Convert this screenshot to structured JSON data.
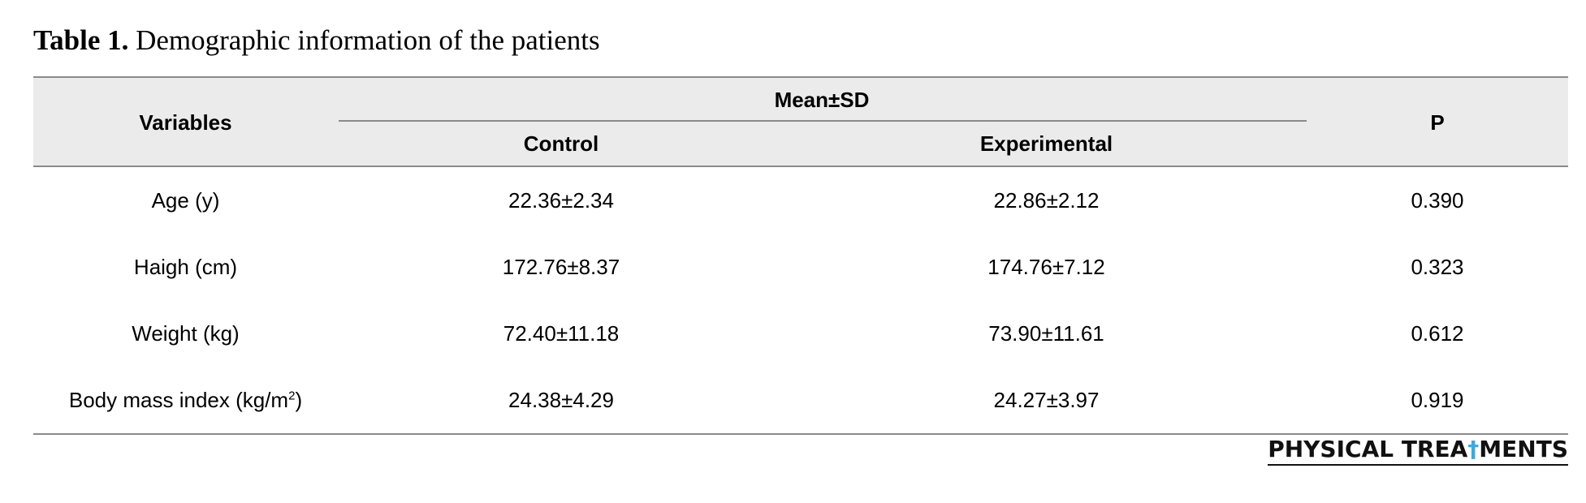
{
  "caption": {
    "label": "Table 1.",
    "text": "Demographic information of the patients"
  },
  "headers": {
    "variables": "Variables",
    "mean_sd": "Mean±SD",
    "control": "Control",
    "experimental": "Experimental",
    "p": "P"
  },
  "rows": [
    {
      "variable": "Age (y)",
      "control": "22.36±2.34",
      "experimental": "22.86±2.12",
      "p": "0.390"
    },
    {
      "variable": "Haigh (cm)",
      "control": "172.76±8.37",
      "experimental": "174.76±7.12",
      "p": "0.323"
    },
    {
      "variable": "Weight (kg)",
      "control": "72.40±11.18",
      "experimental": "73.90±11.61",
      "p": "0.612"
    },
    {
      "variable": "Body mass index (kg/m",
      "variable_sup": "2",
      "variable_end": ")",
      "control": "24.38±4.29",
      "experimental": "24.27±3.97",
      "p": "0.919"
    }
  ],
  "logo": {
    "part1": "PHYSICAL TREA",
    "figure": "†",
    "part2": "MENTS",
    "accent_color": "#3fa9d8"
  }
}
